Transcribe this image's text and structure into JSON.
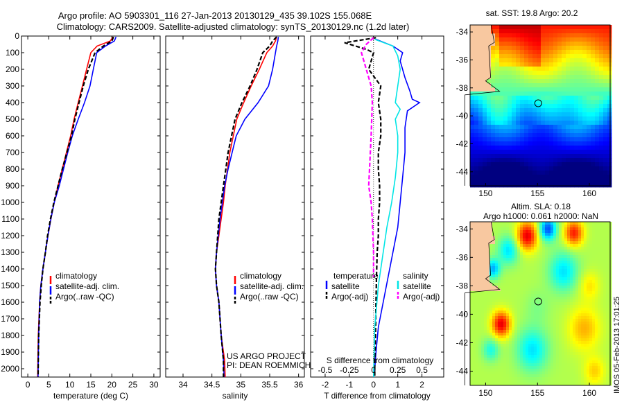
{
  "figure": {
    "title_line1": "Argo profile: AO 5903301_116 27-Jan-2013 20130129_435 39.102S 155.068E",
    "title_line2": "Climatology: CARS2009. Satellite-adjusted climatology: synTS_20130129.nc (1.2d later)",
    "credit_line1": "US ARGO PROJECT",
    "credit_line2": "PI: DEAN ROEMMICH",
    "stamp": "IMOS 05-Feb-2013 17:01:25",
    "sst_title": "sat. SST: 19.8 Argo: 20.2",
    "sla_title1": "Altim. SLA: 0.18",
    "sla_title2": "Argo h1000: 0.061 h2000: NaN"
  },
  "colors": {
    "climatology": "#ff0000",
    "satellite": "#0000ff",
    "argo": "#000000",
    "salinity_satellite": "#00e5e5",
    "salinity_argo": "#ff00ff",
    "land": "#f8c8a0"
  },
  "chart_data": [
    {
      "type": "line",
      "xlabel": "temperature (deg C)",
      "ylabel": "",
      "xlim": [
        -1.5,
        31.5
      ],
      "ylim": [
        2050,
        0
      ],
      "xticks": [
        0,
        5,
        10,
        15,
        20,
        25,
        30
      ],
      "xtick_labels": [
        "0",
        "5",
        "10",
        "15",
        "20",
        "25",
        "30"
      ],
      "yticks": [
        0,
        100,
        200,
        300,
        400,
        500,
        600,
        700,
        800,
        900,
        1000,
        1100,
        1200,
        1300,
        1400,
        1500,
        1600,
        1700,
        1800,
        1900,
        2000
      ],
      "ytick_labels": [
        "0",
        "100",
        "200",
        "300",
        "400",
        "500",
        "600",
        "700",
        "800",
        "900",
        "1000",
        "1100",
        "1200",
        "1300",
        "1400",
        "1500",
        "1600",
        "1700",
        "1800",
        "1900",
        "2000"
      ],
      "legend": [
        "climatology",
        "satellite-adj. clim.",
        "Argo(..raw -QC)"
      ],
      "legend_position": "lower-center",
      "series": [
        {
          "name": "climatology",
          "color": "#ff0000",
          "dash": false,
          "x": [
            20.3,
            19.6,
            16.5,
            15.0,
            14.0,
            13.0,
            12.0,
            11.0,
            10.2,
            9.2,
            8.2,
            7.2,
            6.3,
            5.5,
            4.8,
            4.2,
            3.6,
            3.1,
            2.8,
            2.5,
            2.4,
            2.35
          ],
          "y": [
            5,
            30,
            60,
            100,
            200,
            300,
            400,
            500,
            600,
            700,
            800,
            900,
            1000,
            1100,
            1200,
            1300,
            1400,
            1500,
            1600,
            1800,
            1950,
            2050
          ]
        },
        {
          "name": "satellite-adj. clim.",
          "color": "#0000ff",
          "dash": false,
          "x": [
            21.0,
            20.6,
            18.5,
            16.4,
            15.6,
            14.8,
            13.5,
            12.0,
            10.6,
            9.5,
            8.5,
            7.5,
            6.3,
            5.5,
            4.8,
            4.2,
            3.6,
            3.1,
            2.8,
            2.6,
            2.5,
            2.45
          ],
          "y": [
            5,
            30,
            60,
            100,
            200,
            300,
            400,
            500,
            600,
            700,
            800,
            900,
            1000,
            1100,
            1200,
            1300,
            1400,
            1500,
            1600,
            1800,
            1950,
            2050
          ]
        },
        {
          "name": "Argo(..raw -QC)",
          "color": "#000000",
          "dash": true,
          "x": [
            20.4,
            20.0,
            18.0,
            16.0,
            14.4,
            13.2,
            12.2,
            11.2,
            10.4,
            9.3,
            8.2,
            7.2,
            6.2,
            5.4,
            4.7,
            4.2,
            3.6,
            3.2,
            2.9,
            2.6,
            2.5,
            2.45
          ],
          "y": [
            5,
            30,
            60,
            100,
            200,
            300,
            400,
            500,
            600,
            700,
            800,
            900,
            1000,
            1100,
            1200,
            1300,
            1400,
            1500,
            1600,
            1800,
            1950,
            2050
          ]
        }
      ]
    },
    {
      "type": "line",
      "xlabel": "salinity",
      "ylabel": "",
      "xlim": [
        33.7,
        36.1
      ],
      "ylim": [
        2050,
        0
      ],
      "xticks": [
        34,
        34.5,
        35,
        35.5,
        36
      ],
      "xtick_labels": [
        "34",
        "34.5",
        "35",
        "35.5",
        "36"
      ],
      "legend": [
        "climatology",
        "satellite-adj. clim.",
        "Argo(..raw -QC)"
      ],
      "legend_position": "lower-center",
      "series": [
        {
          "name": "climatology",
          "color": "#ff0000",
          "dash": false,
          "x": [
            35.62,
            35.6,
            35.55,
            35.45,
            35.32,
            35.18,
            35.05,
            34.93,
            34.87,
            34.81,
            34.77,
            34.73,
            34.7,
            34.66,
            34.62,
            34.58,
            34.56,
            34.58,
            34.62,
            34.66,
            34.72,
            34.73
          ],
          "y": [
            5,
            30,
            60,
            100,
            200,
            300,
            400,
            500,
            600,
            700,
            800,
            900,
            1000,
            1100,
            1200,
            1300,
            1400,
            1500,
            1600,
            1800,
            1950,
            2050
          ]
        },
        {
          "name": "satellite-adj. clim.",
          "color": "#0000ff",
          "dash": false,
          "x": [
            35.65,
            35.64,
            35.62,
            35.6,
            35.55,
            35.48,
            35.3,
            35.07,
            34.92,
            34.85,
            34.78,
            34.72,
            34.68,
            34.64,
            34.61,
            34.58,
            34.56,
            34.58,
            34.62,
            34.66,
            34.7,
            34.71
          ],
          "y": [
            5,
            30,
            60,
            100,
            200,
            300,
            400,
            500,
            600,
            700,
            800,
            900,
            1000,
            1100,
            1200,
            1300,
            1400,
            1500,
            1600,
            1800,
            1950,
            2050
          ]
        },
        {
          "name": "Argo(..raw -QC)",
          "color": "#000000",
          "dash": true,
          "x": [
            35.62,
            35.55,
            35.5,
            35.38,
            35.28,
            35.16,
            35.02,
            34.9,
            34.84,
            34.78,
            34.74,
            34.7,
            34.66,
            34.62,
            34.6,
            34.58,
            34.56,
            34.58,
            34.62,
            34.66,
            34.7,
            34.7
          ],
          "y": [
            5,
            30,
            60,
            100,
            200,
            300,
            400,
            500,
            600,
            700,
            800,
            900,
            1000,
            1100,
            1200,
            1300,
            1400,
            1500,
            1600,
            1800,
            1950,
            2050
          ]
        }
      ]
    },
    {
      "type": "line",
      "xlabel": "T difference from climatology",
      "xlabel_top": "S difference from climatology",
      "ylabel": "",
      "xlim": [
        -2.6,
        2.9
      ],
      "ylim": [
        2050,
        0
      ],
      "xticks": [
        -2,
        -1,
        0,
        1,
        2
      ],
      "xtick_labels": [
        "-2",
        "-1",
        "0",
        "1",
        "2"
      ],
      "s_xticks": [
        -0.5,
        -0.25,
        0,
        0.25,
        0.5
      ],
      "s_xtick_labels": [
        "-0.5",
        "-0.25",
        "0",
        "0.25",
        "0.5"
      ],
      "legend_temperature_title": "temperature",
      "legend_salinity_title": "salinity",
      "legend": [
        "satellite",
        "Argo(-adj)",
        "satellite",
        "Argo(-adj)"
      ],
      "legend_position": "lower-center",
      "series": [
        {
          "name": "satellite",
          "group": "temperature",
          "color": "#0000ff",
          "dash": false,
          "x": [
            0.1,
            0.8,
            1.2,
            1.1,
            1.3,
            1.5,
            1.6,
            1.9,
            1.4,
            1.3,
            1.3,
            1.2,
            1.1,
            1.0,
            0.8,
            0.6,
            0.4,
            0.2,
            0.1,
            0.05,
            0.0
          ],
          "y": [
            20,
            60,
            100,
            150,
            250,
            330,
            380,
            400,
            450,
            550,
            700,
            850,
            1000,
            1150,
            1300,
            1450,
            1600,
            1750,
            1900,
            2000,
            2050
          ]
        },
        {
          "name": "Argo(-adj)",
          "group": "temperature",
          "color": "#000000",
          "dash": true,
          "x": [
            0.1,
            -1.2,
            -0.3,
            0.0,
            -0.2,
            0.3,
            0.2,
            0.3,
            0.3,
            0.2,
            0.2,
            0.25,
            0.25,
            0.2,
            0.2,
            0.15,
            0.12,
            0.1,
            0.08,
            0.05,
            0.05
          ],
          "y": [
            10,
            40,
            80,
            100,
            200,
            300,
            400,
            500,
            600,
            700,
            800,
            900,
            1000,
            1100,
            1200,
            1300,
            1450,
            1600,
            1800,
            1950,
            2050
          ]
        },
        {
          "name": "satellite",
          "group": "salinity",
          "color": "#00e5e5",
          "dash": false,
          "x": [
            0.05,
            0.8,
            1.0,
            1.1,
            1.0,
            0.9,
            1.1,
            0.9,
            1.0,
            1.0,
            0.9,
            0.75,
            0.55,
            0.4,
            0.2,
            0.05,
            0.0
          ],
          "y": [
            20,
            60,
            120,
            200,
            300,
            400,
            440,
            500,
            600,
            700,
            850,
            1000,
            1150,
            1300,
            1500,
            1750,
            2050
          ]
        },
        {
          "name": "Argo(-adj)",
          "group": "salinity",
          "color": "#ff00ff",
          "dash": true,
          "x": [
            0.0,
            -0.3,
            -0.5,
            -0.3,
            -0.1,
            -0.05,
            -0.1,
            -0.2,
            -0.1,
            -0.05,
            0.0,
            0.0
          ],
          "y": [
            10,
            50,
            100,
            200,
            300,
            400,
            600,
            900,
            1000,
            1100,
            1300,
            1450
          ]
        }
      ]
    },
    {
      "type": "heatmap",
      "title": "sat. SST: 19.8 Argo: 20.2",
      "xlim": [
        148.5,
        162
      ],
      "ylim": [
        -45,
        -33.5
      ],
      "xticks": [
        150,
        155,
        160
      ],
      "xtick_labels": [
        "150",
        "155",
        "160"
      ],
      "yticks": [
        -34,
        -36,
        -38,
        -40,
        -42,
        -44
      ],
      "ytick_labels": [
        "-34",
        "-36",
        "-38",
        "-40",
        "-42",
        "-44"
      ],
      "marker": {
        "lon": 155.068,
        "lat": -39.102
      },
      "colorscale": "jet"
    },
    {
      "type": "heatmap",
      "title": "Altim. SLA: 0.18",
      "subtitle": "Argo h1000: 0.061 h2000: NaN",
      "xlim": [
        148.5,
        162
      ],
      "ylim": [
        -45,
        -33.5
      ],
      "xticks": [
        150,
        155,
        160
      ],
      "xtick_labels": [
        "150",
        "155",
        "160"
      ],
      "yticks": [
        -34,
        -36,
        -38,
        -40,
        -42,
        -44
      ],
      "ytick_labels": [
        "-34",
        "-36",
        "-38",
        "-40",
        "-42",
        "-44"
      ],
      "marker": {
        "lon": 155.068,
        "lat": -39.102
      },
      "colorscale": "jet"
    }
  ]
}
